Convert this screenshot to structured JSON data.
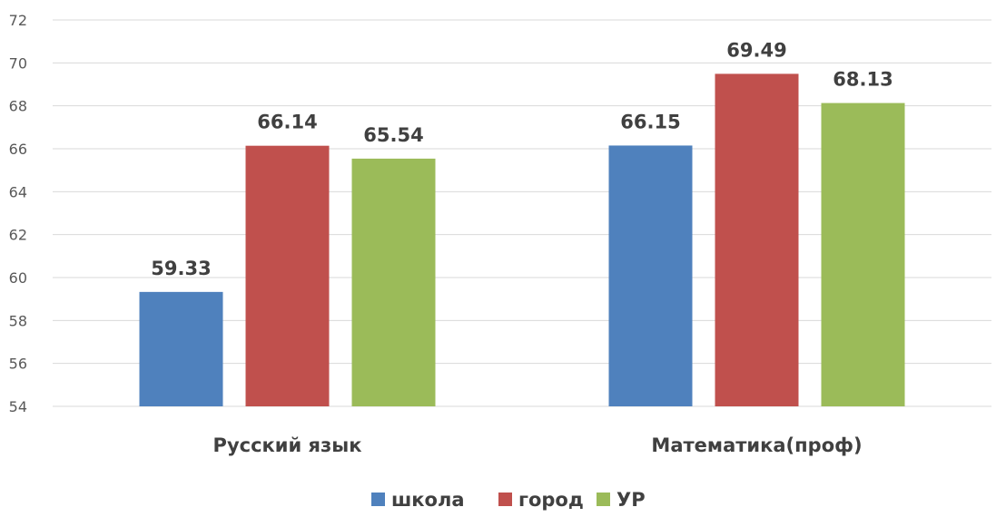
{
  "chart_data": {
    "type": "bar",
    "categories": [
      "Русский язык",
      "Математика(проф)"
    ],
    "series": [
      {
        "name": "школа",
        "color": "#4f81bd",
        "values": [
          59.33,
          66.15
        ]
      },
      {
        "name": "город",
        "color": "#c0504d",
        "values": [
          66.14,
          69.49
        ]
      },
      {
        "name": "УР",
        "color": "#9bbb59",
        "values": [
          65.54,
          68.13
        ]
      }
    ],
    "ylim": [
      54,
      72
    ],
    "ytick_step": 2,
    "yticks": [
      "54",
      "56",
      "58",
      "60",
      "62",
      "64",
      "66",
      "68",
      "70",
      "72"
    ],
    "title": "",
    "xlabel": "",
    "ylabel": "",
    "grid": true,
    "legend_position": "bottom",
    "data_labels": [
      [
        "59.33",
        "66.15"
      ],
      [
        "66.14",
        "69.49"
      ],
      [
        "65.54",
        "68.13"
      ]
    ]
  }
}
